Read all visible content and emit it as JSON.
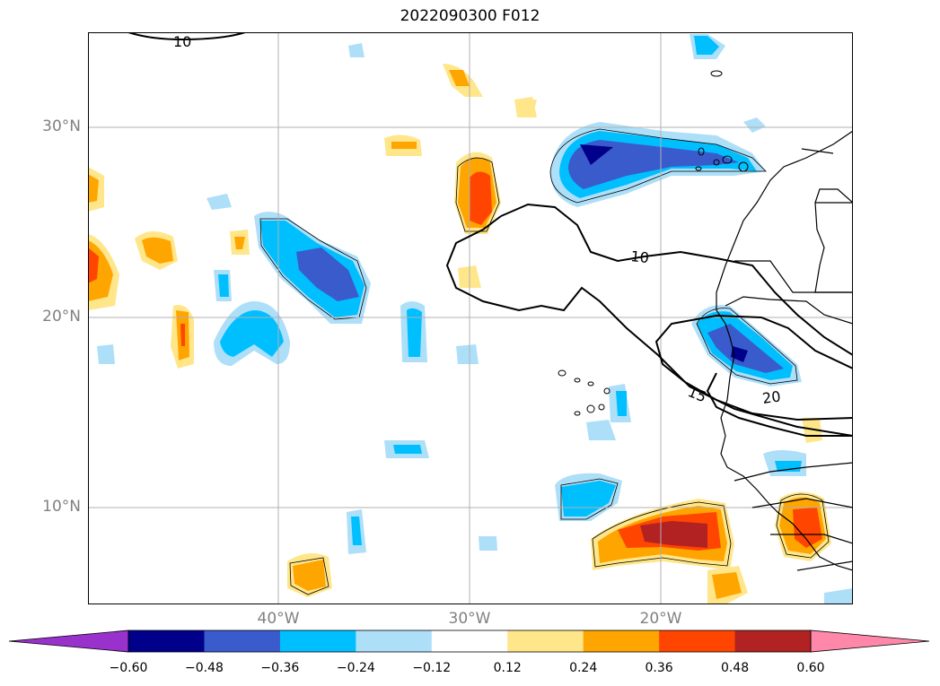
{
  "title": "2022090300 F012",
  "map": {
    "lat_ticks": [
      "30°N",
      "20°N",
      "10°N"
    ],
    "lon_ticks": [
      "40°W",
      "30°W",
      "20°W"
    ],
    "grid": true,
    "extent": {
      "lon_min": -50,
      "lon_max": -10,
      "lat_min": 5,
      "lat_max": 35
    }
  },
  "contour_labels": [
    "10",
    "10",
    "15",
    "20"
  ],
  "colorbar": {
    "ticks": [
      "−0.60",
      "−0.48",
      "−0.36",
      "−0.24",
      "−0.12",
      "0.12",
      "0.24",
      "0.36",
      "0.48",
      "0.60"
    ],
    "colors": {
      "under": "#9932CC",
      "bins": [
        "#00008B",
        "#3A5BCB",
        "#00BFFF",
        "#ADDFF8",
        "#FFFFFF",
        "#FFE68A",
        "#FFA500",
        "#FF4500",
        "#B22222"
      ],
      "over": "#FF88AA"
    }
  }
}
